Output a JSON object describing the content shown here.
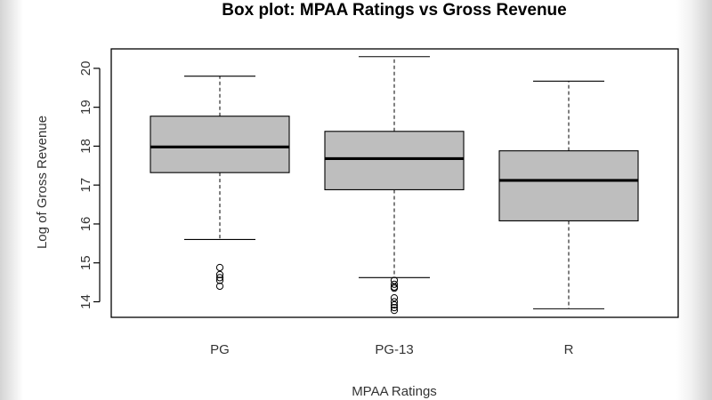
{
  "chart_data": {
    "type": "box",
    "title": "Box plot: MPAA Ratings vs Gross Revenue",
    "xlabel": "MPAA Ratings",
    "ylabel": "Log of Gross Revenue",
    "categories": [
      "PG",
      "PG-13",
      "R"
    ],
    "ylim": [
      13.6,
      20.5
    ],
    "yticks": [
      14,
      15,
      16,
      17,
      18,
      19,
      20
    ],
    "box_color": "#bebebe",
    "boxes": [
      {
        "name": "PG",
        "whisker_low": 15.6,
        "q1": 17.32,
        "median": 17.98,
        "q3": 18.77,
        "whisker_high": 19.8,
        "outliers": [
          14.88,
          14.7,
          14.62,
          14.55,
          14.4
        ]
      },
      {
        "name": "PG-13",
        "whisker_low": 14.62,
        "q1": 16.88,
        "median": 17.68,
        "q3": 18.38,
        "whisker_high": 20.3,
        "outliers": [
          14.55,
          14.45,
          14.38,
          14.35,
          14.1,
          14.0,
          13.92,
          13.85,
          13.78
        ]
      },
      {
        "name": "R",
        "whisker_low": 13.82,
        "q1": 16.08,
        "median": 17.12,
        "q3": 17.88,
        "whisker_high": 19.67,
        "outliers": []
      }
    ]
  }
}
